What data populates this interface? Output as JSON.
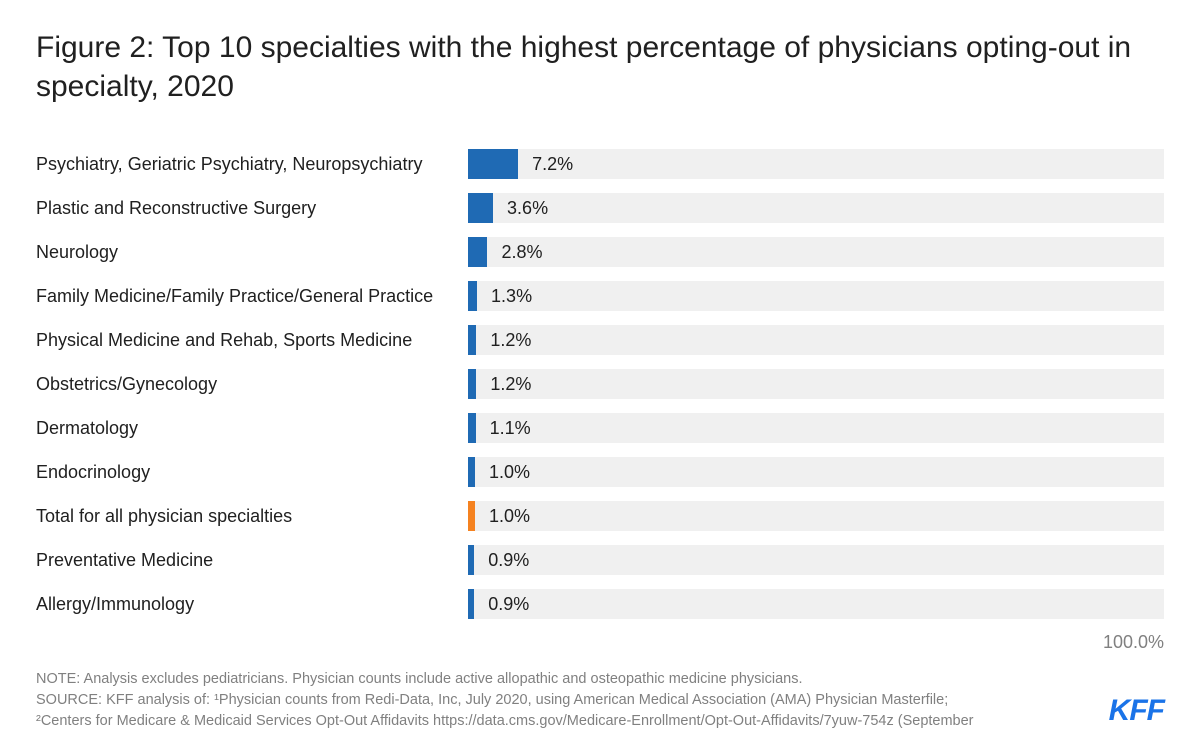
{
  "title": "Figure 2: Top 10 specialties with the highest percentage of physicians opting-out in specialty, 2020",
  "chart": {
    "type": "bar",
    "orientation": "horizontal",
    "xmax": 100.0,
    "xmax_label": "100.0%",
    "track_color": "#f0f0f0",
    "default_bar_color": "#1f6ab4",
    "highlight_bar_color": "#f58220",
    "label_fontsize": 18,
    "value_fontsize": 18,
    "title_fontsize": 30,
    "rows": [
      {
        "label": "Psychiatry, Geriatric Psychiatry, Neuropsychiatry",
        "value": 7.2,
        "value_label": "7.2%",
        "color": "#1f6ab4"
      },
      {
        "label": "Plastic and Reconstructive Surgery",
        "value": 3.6,
        "value_label": "3.6%",
        "color": "#1f6ab4"
      },
      {
        "label": "Neurology",
        "value": 2.8,
        "value_label": "2.8%",
        "color": "#1f6ab4"
      },
      {
        "label": "Family Medicine/Family Practice/General Practice",
        "value": 1.3,
        "value_label": "1.3%",
        "color": "#1f6ab4"
      },
      {
        "label": "Physical Medicine and Rehab, Sports Medicine",
        "value": 1.2,
        "value_label": "1.2%",
        "color": "#1f6ab4"
      },
      {
        "label": "Obstetrics/Gynecology",
        "value": 1.2,
        "value_label": "1.2%",
        "color": "#1f6ab4"
      },
      {
        "label": "Dermatology",
        "value": 1.1,
        "value_label": "1.1%",
        "color": "#1f6ab4"
      },
      {
        "label": "Endocrinology",
        "value": 1.0,
        "value_label": "1.0%",
        "color": "#1f6ab4"
      },
      {
        "label": "Total for all physician specialties",
        "value": 1.0,
        "value_label": "1.0%",
        "color": "#f58220"
      },
      {
        "label": "Preventative Medicine",
        "value": 0.9,
        "value_label": "0.9%",
        "color": "#1f6ab4"
      },
      {
        "label": "Allergy/Immunology",
        "value": 0.9,
        "value_label": "0.9%",
        "color": "#1f6ab4"
      }
    ]
  },
  "footnotes": {
    "note": "NOTE: Analysis excludes pediatricians. Physician counts include active allopathic and osteopathic medicine physicians.",
    "source_l1": "SOURCE: KFF analysis of: ¹Physician counts from Redi-Data, Inc, July 2020, using American Medical Association (AMA) Physician Masterfile;",
    "source_l2": "²Centers for Medicare & Medicaid Services Opt-Out Affidavits https://data.cms.gov/Medicare-Enrollment/Opt-Out-Affidavits/7yuw-754z (September"
  },
  "logo_text": "KFF"
}
